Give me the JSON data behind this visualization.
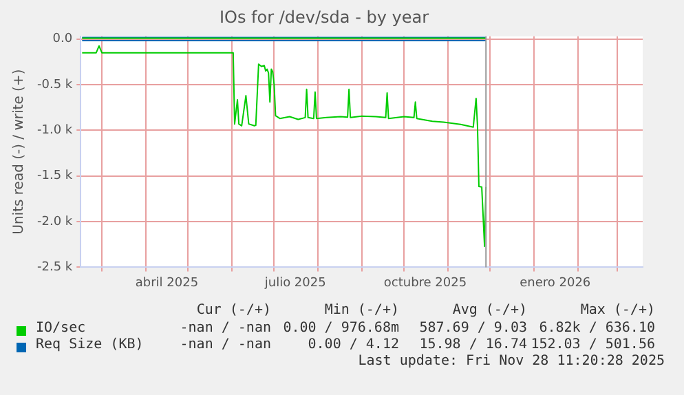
{
  "chart_data": {
    "type": "line",
    "title": "IOs for /dev/sda - by year",
    "ylabel": "Units read (-) / write (+)",
    "xlim": [
      "2025-02-14",
      "2026-03-19"
    ],
    "xticks": [
      {
        "value": "2025-03-01",
        "label": null
      },
      {
        "value": "2025-04-01",
        "label": null
      },
      {
        "value": "2025-04-16",
        "label": "abril 2025"
      },
      {
        "value": "2025-05-01",
        "label": null
      },
      {
        "value": "2025-06-01",
        "label": null
      },
      {
        "value": "2025-07-01",
        "label": null
      },
      {
        "value": "2025-07-16",
        "label": "julio 2025"
      },
      {
        "value": "2025-08-01",
        "label": null
      },
      {
        "value": "2025-09-01",
        "label": null
      },
      {
        "value": "2025-10-01",
        "label": null
      },
      {
        "value": "2025-10-16",
        "label": "octubre 2025"
      },
      {
        "value": "2025-11-01",
        "label": null
      },
      {
        "value": "2025-12-01",
        "label": null
      },
      {
        "value": "2026-01-01",
        "label": null
      },
      {
        "value": "2026-01-16",
        "label": "enero 2026"
      },
      {
        "value": "2026-02-01",
        "label": null
      },
      {
        "value": "2026-03-01",
        "label": null
      }
    ],
    "ylim": [
      -2500,
      30
    ],
    "yticks": [
      {
        "value": 0,
        "label": "0.0"
      },
      {
        "value": -500,
        "label": "-0.5 k"
      },
      {
        "value": -1000,
        "label": "-1.0 k"
      },
      {
        "value": -1500,
        "label": "-1.5 k"
      },
      {
        "value": -2000,
        "label": "-2.0 k"
      },
      {
        "value": -2500,
        "label": "-2.5 k"
      }
    ],
    "grid": true,
    "legend": "bottom",
    "marker": "none",
    "line_style": "solid",
    "ref_lines": [
      {
        "axis": "x",
        "value": "2025-11-28",
        "color": "#999999"
      }
    ],
    "series": [
      {
        "name": "IO/sec",
        "color": "#00cc00",
        "x": [
          "2025-02-15",
          "2025-02-25",
          "2025-02-27",
          "2025-03-01",
          "2025-06-02",
          "2025-06-03",
          "2025-06-05",
          "2025-06-06",
          "2025-06-08",
          "2025-06-11",
          "2025-06-13",
          "2025-06-17",
          "2025-06-18",
          "2025-06-20",
          "2025-06-22",
          "2025-06-24",
          "2025-06-25",
          "2025-06-26",
          "2025-06-27",
          "2025-06-28",
          "2025-06-29",
          "2025-06-30",
          "2025-07-01",
          "2025-07-02",
          "2025-07-05",
          "2025-07-12",
          "2025-07-18",
          "2025-07-23",
          "2025-07-24",
          "2025-07-25",
          "2025-07-29",
          "2025-07-30",
          "2025-07-31",
          "2025-08-07",
          "2025-08-17",
          "2025-08-22",
          "2025-08-23",
          "2025-08-24",
          "2025-09-01",
          "2025-09-11",
          "2025-09-18",
          "2025-09-19",
          "2025-09-20",
          "2025-10-01",
          "2025-10-08",
          "2025-10-09",
          "2025-10-10",
          "2025-10-21",
          "2025-10-29",
          "2025-11-10",
          "2025-11-19",
          "2025-11-21",
          "2025-11-22",
          "2025-11-23",
          "2025-11-25",
          "2025-11-27",
          "2025-11-28"
        ],
        "values": [
          -150,
          -150,
          -75,
          -150,
          -150,
          -930,
          -665,
          -930,
          -950,
          -620,
          -930,
          -950,
          -945,
          -275,
          -300,
          -290,
          -350,
          -330,
          -370,
          -690,
          -330,
          -360,
          -500,
          -840,
          -870,
          -850,
          -880,
          -860,
          -550,
          -860,
          -870,
          -580,
          -870,
          -860,
          -850,
          -855,
          -550,
          -860,
          -845,
          -850,
          -860,
          -590,
          -870,
          -850,
          -860,
          -690,
          -870,
          -900,
          -910,
          -935,
          -965,
          -650,
          -950,
          -1615,
          -1620,
          -2270,
          -1620
        ]
      },
      {
        "color": "#00cc00",
        "x": [
          "2025-02-15",
          "2025-11-28"
        ],
        "values": [
          9,
          9
        ]
      },
      {
        "name": "Req Size (KB)",
        "color": "#0066b3",
        "x": [
          "2025-02-15",
          "2025-11-28"
        ],
        "values": [
          -16,
          -16
        ]
      },
      {
        "color": "#0066b3",
        "x": [
          "2025-02-15",
          "2025-11-28"
        ],
        "values": [
          17,
          17
        ]
      }
    ],
    "annotations": [
      "Cur (-/+)",
      "Min (-/+)",
      "Avg (-/+)",
      "Max (-/+)",
      "-nan / -nan",
      "0.00 / 976.68m",
      "587.69 / 9.03",
      "6.82k / 636.10",
      "-nan / -nan",
      "0.00 / 4.12",
      "15.98 / 16.74",
      "152.03 / 501.56",
      "Last update: Fri Nov 28 11:20:28 2025"
    ]
  }
}
